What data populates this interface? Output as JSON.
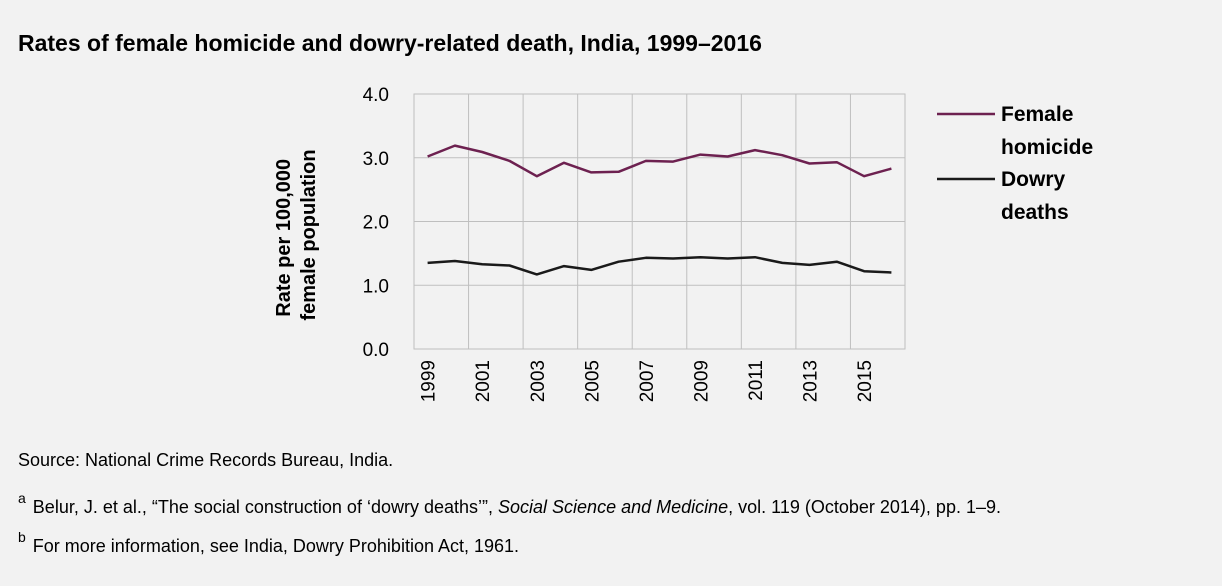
{
  "chart_data": {
    "type": "line",
    "title": "Rates of female homicide and dowry-related death, India, 1999–2016",
    "ylabel_lines": [
      "Rate per 100,000",
      "female population"
    ],
    "xlabel": "",
    "x": [
      1999,
      2000,
      2001,
      2002,
      2003,
      2004,
      2005,
      2006,
      2007,
      2008,
      2009,
      2010,
      2011,
      2012,
      2013,
      2014,
      2015,
      2016
    ],
    "x_tick_labels": [
      "1999",
      "2001",
      "2003",
      "2005",
      "2007",
      "2009",
      "2011",
      "2013",
      "2015"
    ],
    "ylim": [
      0,
      4
    ],
    "y_ticks": [
      "0.0",
      "1.0",
      "2.0",
      "3.0",
      "4.0"
    ],
    "grid": true,
    "legend_position": "right",
    "series": [
      {
        "name": "Female homicide",
        "legend_lines": [
          "Female",
          "homicide"
        ],
        "color": "#6d2150",
        "values": [
          3.02,
          3.19,
          3.09,
          2.95,
          2.71,
          2.92,
          2.77,
          2.78,
          2.95,
          2.94,
          3.05,
          3.02,
          3.12,
          3.04,
          2.91,
          2.93,
          2.71,
          2.83
        ]
      },
      {
        "name": "Dowry deaths",
        "legend_lines": [
          "Dowry",
          "deaths"
        ],
        "color": "#1a1a1a",
        "values": [
          1.35,
          1.38,
          1.33,
          1.31,
          1.17,
          1.3,
          1.24,
          1.37,
          1.43,
          1.42,
          1.44,
          1.42,
          1.44,
          1.35,
          1.32,
          1.37,
          1.22,
          1.2
        ]
      }
    ]
  },
  "source": "Source: National Crime Records Bureau, India.",
  "notes": [
    {
      "marker": "a",
      "before": "Belur, J. et al., “The social construction of ‘dowry deaths’”, ",
      "italic": "Social Science and Medicine",
      "after": ", vol. 119 (October 2014), pp. 1–9."
    },
    {
      "marker": "b",
      "text": "For more information, see India, Dowry Prohibition Act, 1961."
    }
  ]
}
